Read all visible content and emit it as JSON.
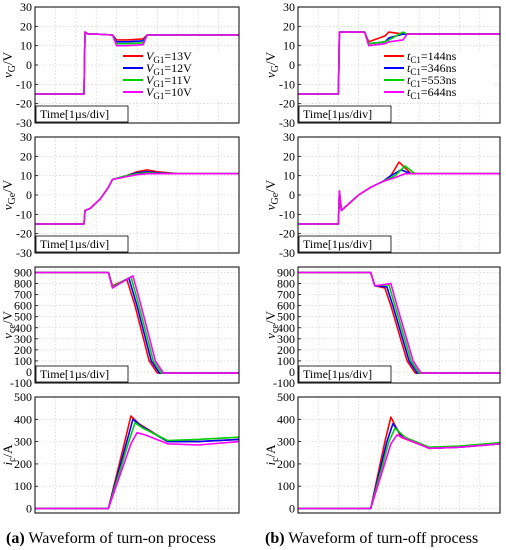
{
  "colors": {
    "c1": "#ff0000",
    "c2": "#0000ff",
    "c3": "#00d000",
    "c4": "#ff00ff"
  },
  "captions": {
    "a_label": "(a)",
    "a_text": " Waveform of turn-on process",
    "b_label": "(b)",
    "b_text": " Waveform of turn-off process"
  },
  "legends": {
    "on": [
      {
        "sym": "V",
        "sub": "G1",
        "val": "=13V"
      },
      {
        "sym": "V",
        "sub": "G1",
        "val": "=12V"
      },
      {
        "sym": "V",
        "sub": "G1",
        "val": "=11V"
      },
      {
        "sym": "V",
        "sub": "G1",
        "val": "=10V"
      }
    ],
    "off": [
      {
        "sym": "t",
        "sub": "C1",
        "val": "=144ns"
      },
      {
        "sym": "t",
        "sub": "C1",
        "val": "=346ns"
      },
      {
        "sym": "t",
        "sub": "C1",
        "val": "=553ns"
      },
      {
        "sym": "t",
        "sub": "C1",
        "val": "=644ns"
      }
    ]
  },
  "chart_data": [
    {
      "type": "line",
      "id": "a1",
      "ylabel_sym": "v",
      "ylabel_sub": "G",
      "ylabel_unit": "/V",
      "time_label": "Time[1µs/div]",
      "yticks": [
        -30,
        -20,
        -10,
        0,
        10,
        20,
        30
      ],
      "ylim": [
        -30,
        30
      ],
      "xlim": [
        0,
        10
      ],
      "legend": "on",
      "series": [
        {
          "name": "VG1=13V",
          "x": [
            0,
            2.4,
            2.45,
            2.6,
            3,
            3.8,
            4.0,
            4.5,
            5.3,
            5.5,
            6,
            10
          ],
          "y": [
            -15,
            -15,
            17,
            16,
            16,
            15.5,
            13,
            13,
            13.5,
            15.5,
            15.5,
            15.5
          ]
        },
        {
          "name": "VG1=12V",
          "x": [
            0,
            2.4,
            2.45,
            2.6,
            3,
            3.8,
            4.0,
            4.5,
            5.3,
            5.5,
            6,
            10
          ],
          "y": [
            -15,
            -15,
            17,
            16,
            16,
            15.5,
            12,
            12,
            12.5,
            15.5,
            15.5,
            15.5
          ]
        },
        {
          "name": "VG1=11V",
          "x": [
            0,
            2.4,
            2.45,
            2.6,
            3,
            3.8,
            4.0,
            4.5,
            5.3,
            5.5,
            6,
            10
          ],
          "y": [
            -15,
            -15,
            17,
            16,
            16,
            15.5,
            11,
            11,
            11.5,
            15.5,
            15.5,
            15.5
          ]
        },
        {
          "name": "VG1=10V",
          "x": [
            0,
            2.4,
            2.45,
            2.6,
            3,
            3.8,
            4.0,
            4.5,
            5.3,
            5.5,
            6,
            10
          ],
          "y": [
            -15,
            -15,
            17,
            16,
            16,
            15.5,
            10,
            10,
            10.5,
            15.5,
            15.5,
            15.5
          ]
        }
      ]
    },
    {
      "type": "line",
      "id": "a2",
      "ylabel_sym": "v",
      "ylabel_sub": "Ge",
      "ylabel_unit": "/V",
      "time_label": "Time[1µs/div]",
      "yticks": [
        -30,
        -20,
        -10,
        0,
        10,
        20,
        30
      ],
      "ylim": [
        -30,
        30
      ],
      "xlim": [
        0,
        10
      ],
      "series": [
        {
          "name": "VG1=13V",
          "x": [
            0,
            2.4,
            2.45,
            2.7,
            3.2,
            3.6,
            3.8,
            4.5,
            5,
            5.5,
            6,
            7,
            10
          ],
          "y": [
            -15,
            -15,
            -8,
            -7,
            -2,
            4,
            8,
            10,
            12,
            13,
            12,
            11,
            11
          ]
        },
        {
          "name": "VG1=12V",
          "x": [
            0,
            2.4,
            2.45,
            2.7,
            3.2,
            3.6,
            3.8,
            4.5,
            5,
            5.5,
            6,
            7,
            10
          ],
          "y": [
            -15,
            -15,
            -8,
            -7,
            -2,
            4,
            8,
            10,
            11.5,
            12,
            11.5,
            11,
            11
          ]
        },
        {
          "name": "VG1=11V",
          "x": [
            0,
            2.4,
            2.45,
            2.7,
            3.2,
            3.6,
            3.8,
            4.5,
            5,
            5.5,
            6,
            7,
            10
          ],
          "y": [
            -15,
            -15,
            -8,
            -7,
            -2,
            4,
            8,
            10,
            11,
            11.5,
            11.2,
            11,
            11
          ]
        },
        {
          "name": "VG1=10V",
          "x": [
            0,
            2.4,
            2.45,
            2.7,
            3.2,
            3.6,
            3.8,
            4.5,
            5,
            5.5,
            6,
            7,
            10
          ],
          "y": [
            -15,
            -15,
            -8,
            -7,
            -2,
            4,
            8,
            9.5,
            10.5,
            11,
            11,
            11,
            11
          ]
        }
      ]
    },
    {
      "type": "line",
      "id": "a3",
      "ylabel_sym": "v",
      "ylabel_sub": "ce",
      "ylabel_unit": "/V",
      "time_label": "Time[1µs/div]",
      "yticks": [
        -100,
        0,
        100,
        200,
        300,
        400,
        500,
        600,
        700,
        800,
        900
      ],
      "ylim": [
        -100,
        950
      ],
      "xlim": [
        0,
        10
      ],
      "series": [
        {
          "name": "VG1=13V",
          "x": [
            0,
            3.6,
            3.8,
            4.5,
            4.9,
            5.6,
            6.0,
            10
          ],
          "y": [
            900,
            900,
            780,
            840,
            600,
            100,
            -10,
            -10
          ]
        },
        {
          "name": "VG1=12V",
          "x": [
            0,
            3.6,
            3.8,
            4.6,
            5.0,
            5.7,
            6.1,
            10
          ],
          "y": [
            900,
            900,
            770,
            850,
            600,
            100,
            -10,
            -10
          ]
        },
        {
          "name": "VG1=11V",
          "x": [
            0,
            3.6,
            3.8,
            4.7,
            5.1,
            5.8,
            6.2,
            10
          ],
          "y": [
            900,
            900,
            770,
            860,
            600,
            100,
            -10,
            -10
          ]
        },
        {
          "name": "VG1=10V",
          "x": [
            0,
            3.6,
            3.8,
            4.8,
            5.2,
            5.9,
            6.3,
            10
          ],
          "y": [
            900,
            900,
            760,
            870,
            600,
            100,
            -10,
            -10
          ]
        }
      ]
    },
    {
      "type": "line",
      "id": "a4",
      "ylabel_sym": "i",
      "ylabel_sub": "c",
      "ylabel_unit": "/A",
      "time_label": "",
      "yticks": [
        0,
        100,
        200,
        300,
        400,
        500
      ],
      "ylim": [
        -20,
        500
      ],
      "xlim": [
        0,
        10
      ],
      "series": [
        {
          "name": "VG1=13V",
          "x": [
            0,
            3.6,
            4.4,
            4.7,
            5.1,
            6.5,
            8,
            10
          ],
          "y": [
            0,
            0,
            300,
            415,
            380,
            300,
            300,
            310
          ]
        },
        {
          "name": "VG1=12V",
          "x": [
            0,
            3.6,
            4.5,
            4.8,
            5.2,
            6.5,
            8,
            10
          ],
          "y": [
            0,
            0,
            300,
            400,
            370,
            300,
            300,
            310
          ]
        },
        {
          "name": "VG1=11V",
          "x": [
            0,
            3.6,
            4.6,
            4.9,
            5.3,
            6.5,
            8,
            10
          ],
          "y": [
            0,
            0,
            300,
            385,
            360,
            305,
            310,
            320
          ]
        },
        {
          "name": "VG1=10V",
          "x": [
            0,
            3.6,
            4.7,
            5.0,
            5.4,
            6.5,
            8,
            10
          ],
          "y": [
            0,
            0,
            290,
            340,
            330,
            290,
            285,
            300
          ]
        }
      ]
    },
    {
      "type": "line",
      "id": "b1",
      "ylabel_sym": "v",
      "ylabel_sub": "G",
      "ylabel_unit": "/V",
      "time_label": "Time[1µs/div]",
      "yticks": [
        -30,
        -20,
        -10,
        0,
        10,
        20,
        30
      ],
      "ylim": [
        -30,
        30
      ],
      "xlim": [
        0,
        10
      ],
      "legend": "off",
      "series": [
        {
          "name": "tC1=144ns",
          "x": [
            0,
            2.0,
            2.05,
            3.3,
            3.5,
            4.3,
            4.5,
            5.2,
            5.4,
            10
          ],
          "y": [
            -15,
            -15,
            17,
            17,
            12,
            15,
            17,
            16,
            16,
            16
          ]
        },
        {
          "name": "tC1=346ns",
          "x": [
            0,
            2.0,
            2.05,
            3.3,
            3.5,
            4.3,
            4.5,
            5.2,
            5.4,
            10
          ],
          "y": [
            -15,
            -15,
            17,
            17,
            11,
            12,
            14,
            16,
            16,
            16
          ]
        },
        {
          "name": "tC1=553ns",
          "x": [
            0,
            2.0,
            2.05,
            3.3,
            3.5,
            4.3,
            4.5,
            5.2,
            5.4,
            10
          ],
          "y": [
            -15,
            -15,
            17,
            17,
            11,
            12,
            13,
            17,
            16,
            16
          ]
        },
        {
          "name": "tC1=644ns",
          "x": [
            0,
            2.0,
            2.05,
            3.3,
            3.5,
            4.3,
            4.5,
            5.2,
            5.4,
            10
          ],
          "y": [
            -15,
            -15,
            17,
            17,
            10,
            11,
            12,
            13,
            16,
            16
          ]
        }
      ]
    },
    {
      "type": "line",
      "id": "b2",
      "ylabel_sym": "v",
      "ylabel_sub": "Ge",
      "ylabel_unit": "/V",
      "time_label": "Time[1µs/div]",
      "yticks": [
        -30,
        -20,
        -10,
        0,
        10,
        20,
        30
      ],
      "ylim": [
        -30,
        30
      ],
      "xlim": [
        0,
        10
      ],
      "series": [
        {
          "name": "tC1=144ns",
          "x": [
            0,
            2.0,
            2.05,
            2.15,
            3,
            3.6,
            4.2,
            4.6,
            5.0,
            5.6,
            10
          ],
          "y": [
            -15,
            -15,
            2,
            -8,
            0,
            4,
            7,
            10,
            17,
            11,
            11
          ]
        },
        {
          "name": "tC1=346ns",
          "x": [
            0,
            2.0,
            2.05,
            2.15,
            3,
            3.6,
            4.2,
            4.6,
            5.1,
            5.6,
            10
          ],
          "y": [
            -15,
            -15,
            2,
            -8,
            0,
            4,
            7,
            10,
            13,
            11,
            11
          ]
        },
        {
          "name": "tC1=553ns",
          "x": [
            0,
            2.0,
            2.05,
            2.15,
            3,
            3.6,
            4.2,
            4.8,
            5.3,
            5.8,
            10
          ],
          "y": [
            -15,
            -15,
            2,
            -8,
            0,
            4,
            7,
            10,
            15,
            11,
            11
          ]
        },
        {
          "name": "tC1=644ns",
          "x": [
            0,
            2.0,
            2.05,
            2.15,
            3,
            3.6,
            4.2,
            4.8,
            5.3,
            5.8,
            10
          ],
          "y": [
            -15,
            -15,
            2,
            -8,
            0,
            4,
            7,
            9,
            11,
            11,
            11
          ]
        }
      ]
    },
    {
      "type": "line",
      "id": "b3",
      "ylabel_sym": "v",
      "ylabel_sub": "ce",
      "ylabel_unit": "/V",
      "time_label": "Time[1µs/div]",
      "yticks": [
        -100,
        0,
        100,
        200,
        300,
        400,
        500,
        600,
        700,
        800,
        900
      ],
      "ylim": [
        -100,
        950
      ],
      "xlim": [
        0,
        10
      ],
      "series": [
        {
          "name": "tC1=144ns",
          "x": [
            0,
            3.6,
            3.8,
            4.3,
            4.6,
            5.4,
            5.8,
            10
          ],
          "y": [
            900,
            900,
            780,
            760,
            600,
            100,
            -10,
            -10
          ]
        },
        {
          "name": "tC1=346ns",
          "x": [
            0,
            3.6,
            3.8,
            4.4,
            4.7,
            5.5,
            5.9,
            10
          ],
          "y": [
            900,
            900,
            780,
            770,
            600,
            100,
            -10,
            -10
          ]
        },
        {
          "name": "tC1=553ns",
          "x": [
            0,
            3.6,
            3.8,
            4.5,
            4.8,
            5.6,
            6.0,
            10
          ],
          "y": [
            900,
            900,
            780,
            790,
            600,
            100,
            -10,
            -10
          ]
        },
        {
          "name": "tC1=644ns",
          "x": [
            0,
            3.6,
            3.8,
            4.6,
            4.9,
            5.7,
            6.1,
            10
          ],
          "y": [
            900,
            900,
            780,
            800,
            600,
            100,
            -10,
            -10
          ]
        }
      ]
    },
    {
      "type": "line",
      "id": "b4",
      "ylabel_sym": "i",
      "ylabel_sub": "c",
      "ylabel_unit": "/A",
      "time_label": "",
      "yticks": [
        0,
        100,
        200,
        300,
        400,
        500
      ],
      "ylim": [
        -20,
        500
      ],
      "xlim": [
        0,
        10
      ],
      "series": [
        {
          "name": "tC1=144ns",
          "x": [
            0,
            3.6,
            4.3,
            4.6,
            5.1,
            6.5,
            8,
            10
          ],
          "y": [
            0,
            0,
            300,
            410,
            320,
            270,
            275,
            290
          ]
        },
        {
          "name": "tC1=346ns",
          "x": [
            0,
            3.6,
            4.4,
            4.7,
            5.2,
            6.5,
            8,
            10
          ],
          "y": [
            0,
            0,
            300,
            380,
            320,
            270,
            275,
            290
          ]
        },
        {
          "name": "tC1=553ns",
          "x": [
            0,
            3.6,
            4.5,
            4.8,
            5.3,
            6.5,
            8,
            10
          ],
          "y": [
            0,
            0,
            300,
            360,
            320,
            275,
            280,
            295
          ]
        },
        {
          "name": "tC1=644ns",
          "x": [
            0,
            3.6,
            4.6,
            4.9,
            5.4,
            6.5,
            8,
            10
          ],
          "y": [
            0,
            0,
            290,
            330,
            310,
            270,
            275,
            290
          ]
        }
      ]
    }
  ]
}
